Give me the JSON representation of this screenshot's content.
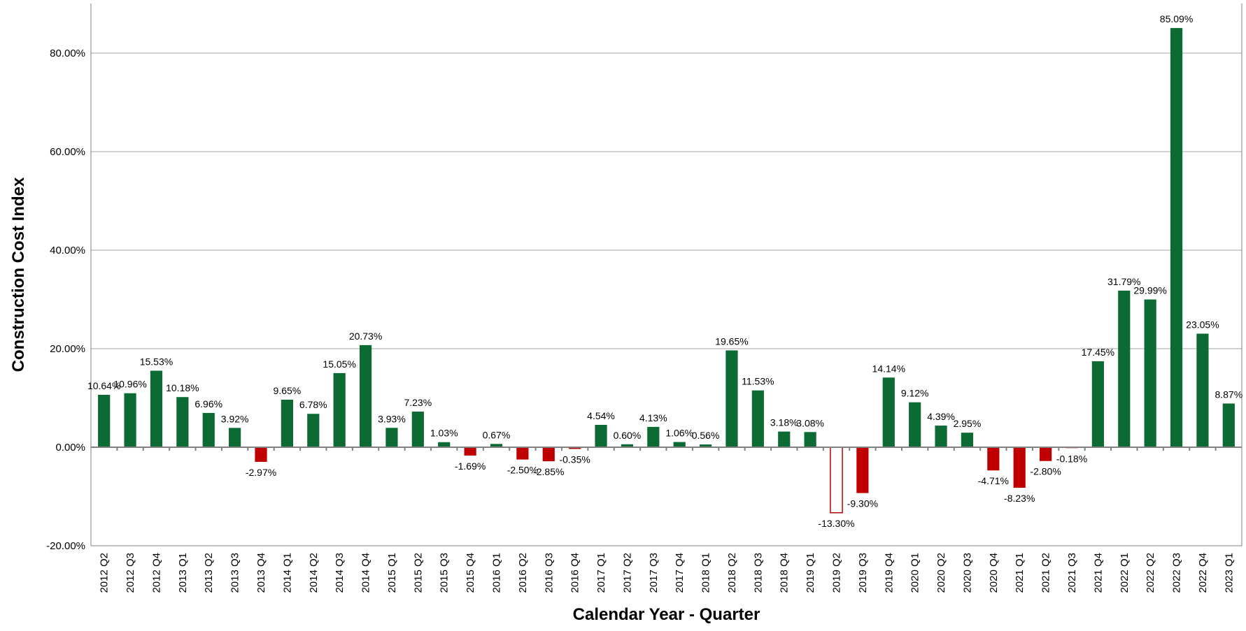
{
  "chart_data": {
    "type": "bar",
    "title": "",
    "xlabel": "Calendar Year - Quarter",
    "ylabel": "Construction Cost Index",
    "ylim": [
      -20,
      90
    ],
    "yticks": [
      -20,
      0,
      20,
      40,
      60,
      80
    ],
    "ytick_labels": [
      "-20.00%",
      "0.00%",
      "20.00%",
      "40.00%",
      "60.00%",
      "80.00%"
    ],
    "grid": true,
    "legend": "none",
    "colors": {
      "positive": "#0b6b33",
      "negative": "#c00000",
      "hollow_outline": "#c00000",
      "grid": "#a6a6a6"
    },
    "categories": [
      "2012 Q2",
      "2012 Q3",
      "2012 Q4",
      "2013 Q1",
      "2013 Q2",
      "2013 Q3",
      "2013 Q4",
      "2014 Q1",
      "2014 Q2",
      "2014 Q3",
      "2014 Q4",
      "2015 Q1",
      "2015 Q2",
      "2015 Q3",
      "2015 Q4",
      "2016 Q1",
      "2016 Q2",
      "2016 Q3",
      "2016 Q4",
      "2017 Q1",
      "2017 Q2",
      "2017 Q3",
      "2017 Q4",
      "2018 Q1",
      "2018 Q2",
      "2018 Q3",
      "2018 Q4",
      "2019 Q1",
      "2019 Q2",
      "2019 Q3",
      "2019 Q4",
      "2020 Q1",
      "2020 Q2",
      "2020 Q3",
      "2020 Q4",
      "2021 Q1",
      "2021 Q2",
      "2021 Q3",
      "2021 Q4",
      "2022 Q1",
      "2022 Q2",
      "2022 Q3",
      "2022 Q4",
      "2023 Q1"
    ],
    "values": [
      10.64,
      10.96,
      15.53,
      10.18,
      6.96,
      3.92,
      -2.97,
      9.65,
      6.78,
      15.05,
      20.73,
      3.93,
      7.23,
      1.03,
      -1.69,
      0.67,
      -2.5,
      -2.85,
      -0.35,
      4.54,
      0.6,
      4.13,
      1.06,
      0.56,
      19.65,
      11.53,
      3.18,
      3.08,
      -13.3,
      -9.3,
      14.14,
      9.12,
      4.39,
      2.95,
      -4.71,
      -8.23,
      -2.8,
      -0.18,
      17.45,
      31.79,
      29.99,
      85.09,
      23.05,
      8.87
    ],
    "value_labels": [
      "10.64%",
      "10.96%",
      "15.53%",
      "10.18%",
      "6.96%",
      "3.92%",
      "-2.97%",
      "9.65%",
      "6.78%",
      "15.05%",
      "20.73%",
      "3.93%",
      "7.23%",
      "1.03%",
      "-1.69%",
      "0.67%",
      "-2.50%",
      "-2.85%",
      "-0.35%",
      "4.54%",
      "0.60%",
      "4.13%",
      "1.06%",
      "0.56%",
      "19.65%",
      "11.53%",
      "3.18%",
      "3.08%",
      "-13.30%",
      "-9.30%",
      "14.14%",
      "9.12%",
      "4.39%",
      "2.95%",
      "-4.71%",
      "-8.23%",
      "-2.80%",
      "-0.18%",
      "17.45%",
      "31.79%",
      "29.99%",
      "85.09%",
      "23.05%",
      "8.87%"
    ],
    "hollow_bars": [
      "2019 Q2"
    ]
  }
}
